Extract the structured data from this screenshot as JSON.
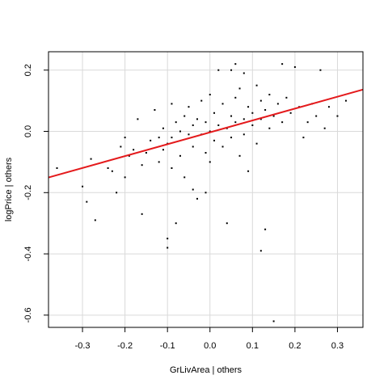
{
  "chart_data": {
    "type": "scatter",
    "title": "",
    "xlabel": "GrLivArea | others",
    "ylabel": "logPrice | others",
    "xlim": [
      -0.38,
      0.36
    ],
    "ylim": [
      -0.64,
      0.26
    ],
    "xticks": [
      "-0.3",
      "-0.2",
      "-0.1",
      "0.0",
      "0.1",
      "0.2",
      "0.3"
    ],
    "yticks": [
      "0.2",
      "0.0",
      "-0.2",
      "-0.4",
      "-0.6"
    ],
    "grid": true,
    "legend": "none",
    "point_color": "#000000",
    "line_color": "#e41a1c",
    "grid_color": "#d9d9d9",
    "fit_line": {
      "slope": 0.3877,
      "intercept": -0.0032
    },
    "points": [
      [
        -0.3,
        -0.18
      ],
      [
        -0.29,
        -0.23
      ],
      [
        -0.28,
        -0.09
      ],
      [
        -0.27,
        -0.29
      ],
      [
        -0.22,
        -0.2
      ],
      [
        -0.23,
        -0.13
      ],
      [
        -0.24,
        -0.12
      ],
      [
        -0.21,
        -0.05
      ],
      [
        -0.2,
        -0.02
      ],
      [
        -0.2,
        -0.15
      ],
      [
        -0.19,
        -0.08
      ],
      [
        -0.18,
        -0.06
      ],
      [
        -0.17,
        0.04
      ],
      [
        -0.16,
        -0.27
      ],
      [
        -0.16,
        -0.11
      ],
      [
        -0.15,
        -0.07
      ],
      [
        -0.14,
        -0.03
      ],
      [
        -0.13,
        0.07
      ],
      [
        -0.12,
        -0.02
      ],
      [
        -0.12,
        -0.1
      ],
      [
        -0.11,
        0.01
      ],
      [
        -0.11,
        -0.06
      ],
      [
        -0.1,
        -0.35
      ],
      [
        -0.1,
        -0.38
      ],
      [
        -0.1,
        -0.04
      ],
      [
        -0.09,
        0.09
      ],
      [
        -0.09,
        -0.02
      ],
      [
        -0.09,
        -0.12
      ],
      [
        -0.08,
        -0.3
      ],
      [
        -0.08,
        0.03
      ],
      [
        -0.07,
        -0.08
      ],
      [
        -0.07,
        0.0
      ],
      [
        -0.06,
        0.05
      ],
      [
        -0.06,
        -0.15
      ],
      [
        -0.05,
        -0.01
      ],
      [
        -0.05,
        0.08
      ],
      [
        -0.04,
        -0.05
      ],
      [
        -0.04,
        0.02
      ],
      [
        -0.03,
        -0.22
      ],
      [
        -0.03,
        0.04
      ],
      [
        -0.02,
        -0.01
      ],
      [
        -0.02,
        0.1
      ],
      [
        -0.01,
        0.03
      ],
      [
        -0.01,
        -0.07
      ],
      [
        0.0,
        0.0
      ],
      [
        0.0,
        0.12
      ],
      [
        0.0,
        -0.1
      ],
      [
        0.01,
        0.06
      ],
      [
        0.01,
        -0.03
      ],
      [
        0.02,
        0.2
      ],
      [
        0.02,
        0.02
      ],
      [
        0.03,
        -0.05
      ],
      [
        0.03,
        0.09
      ],
      [
        0.04,
        0.01
      ],
      [
        0.04,
        -0.3
      ],
      [
        0.05,
        0.05
      ],
      [
        0.05,
        -0.02
      ],
      [
        0.06,
        0.11
      ],
      [
        0.06,
        0.03
      ],
      [
        0.07,
        -0.08
      ],
      [
        0.07,
        0.14
      ],
      [
        0.08,
        0.04
      ],
      [
        0.08,
        -0.01
      ],
      [
        0.09,
        0.08
      ],
      [
        0.09,
        -0.13
      ],
      [
        0.1,
        0.06
      ],
      [
        0.1,
        0.02
      ],
      [
        0.11,
        0.15
      ],
      [
        0.11,
        -0.04
      ],
      [
        0.12,
        0.1
      ],
      [
        0.12,
        0.04
      ],
      [
        0.13,
        0.07
      ],
      [
        0.13,
        -0.32
      ],
      [
        0.14,
        0.12
      ],
      [
        0.14,
        0.01
      ],
      [
        0.15,
        0.05
      ],
      [
        0.15,
        -0.62
      ],
      [
        0.16,
        0.09
      ],
      [
        0.17,
        0.22
      ],
      [
        0.17,
        0.03
      ],
      [
        0.18,
        0.11
      ],
      [
        0.19,
        0.06
      ],
      [
        0.2,
        0.21
      ],
      [
        0.21,
        0.08
      ],
      [
        0.22,
        -0.02
      ],
      [
        0.23,
        0.03
      ],
      [
        0.24,
        0.09
      ],
      [
        0.25,
        0.05
      ],
      [
        0.26,
        0.2
      ],
      [
        0.27,
        0.01
      ],
      [
        0.28,
        0.08
      ],
      [
        0.3,
        0.05
      ],
      [
        0.32,
        0.1
      ],
      [
        -0.36,
        -0.12
      ],
      [
        0.06,
        0.22
      ],
      [
        0.12,
        -0.39
      ],
      [
        -0.01,
        -0.2
      ],
      [
        0.05,
        0.2
      ],
      [
        0.08,
        0.19
      ],
      [
        -0.04,
        -0.19
      ]
    ]
  }
}
